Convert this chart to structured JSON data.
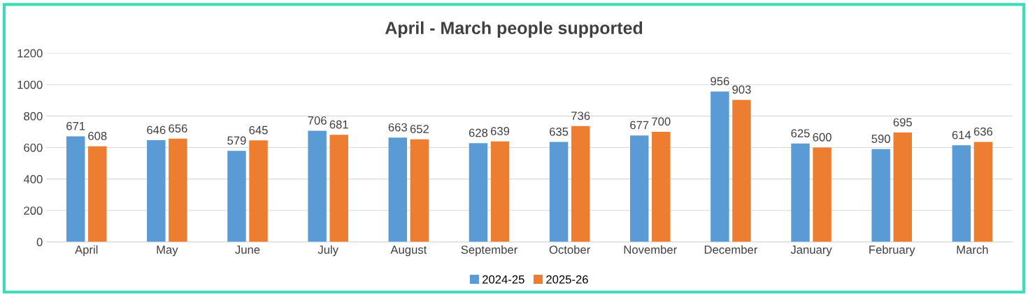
{
  "chart_data": {
    "type": "bar",
    "title": "April - March people supported",
    "categories": [
      "April",
      "May",
      "June",
      "July",
      "August",
      "September",
      "October",
      "November",
      "December",
      "January",
      "February",
      "March"
    ],
    "series": [
      {
        "name": "2024-25",
        "color": "#5b9bd5",
        "values": [
          671,
          646,
          579,
          706,
          663,
          628,
          635,
          677,
          956,
          625,
          590,
          614
        ]
      },
      {
        "name": "2025-26",
        "color": "#ed7d31",
        "values": [
          608,
          656,
          645,
          681,
          652,
          639,
          736,
          700,
          903,
          600,
          695,
          636
        ]
      }
    ],
    "ylim": [
      0,
      1200
    ],
    "yticks": [
      0,
      200,
      400,
      600,
      800,
      1000,
      1200
    ],
    "grid": "y",
    "legend": "bottom",
    "data_labels": true
  }
}
